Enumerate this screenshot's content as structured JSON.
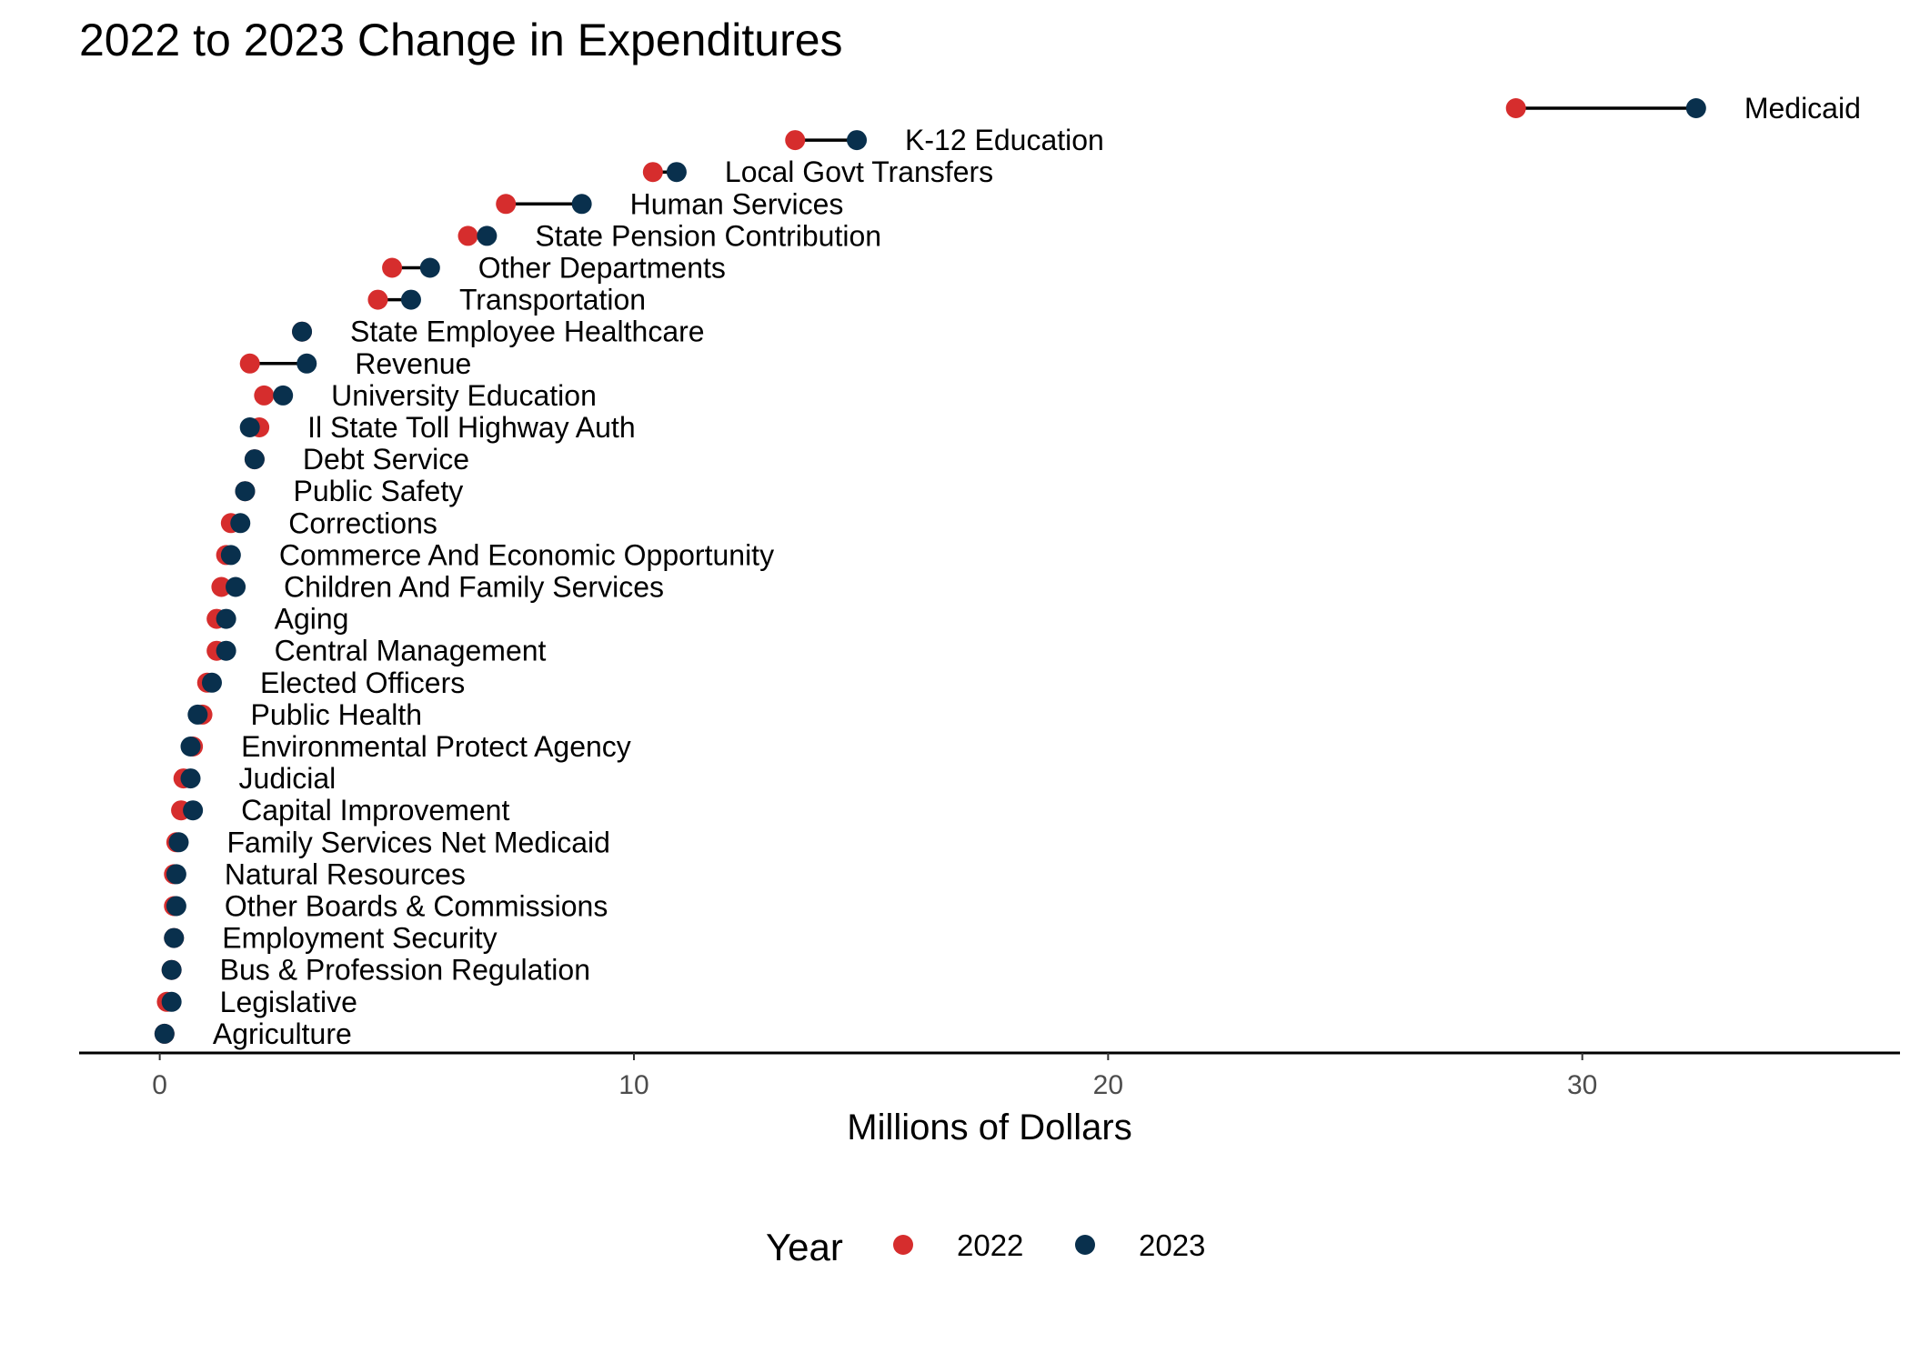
{
  "chart_data": {
    "type": "dumbbell",
    "title": "2022 to 2023 Change in Expenditures",
    "xlabel": "Millions of Dollars",
    "ylabel": "",
    "xlim": [
      -1.7,
      36.7
    ],
    "xticks": [
      0,
      10,
      20,
      30
    ],
    "grid": false,
    "legend": {
      "title": "Year",
      "position": "bottom"
    },
    "series": [
      {
        "name": "2022",
        "color": "#d62d2d"
      },
      {
        "name": "2023",
        "color": "#09304d"
      }
    ],
    "categories": [
      "Medicaid",
      "K-12 Education",
      "Local Govt Transfers",
      "Human Services",
      "State Pension Contribution",
      "Other Departments",
      "Transportation",
      "State Employee Healthcare",
      "Revenue",
      "University Education",
      "Il State Toll Highway Auth",
      "Debt Service",
      "Public Safety",
      "Corrections",
      "Commerce And Economic Opportunity",
      "Children And Family Services",
      "Aging",
      "Central Management",
      "Elected Officers",
      "Public Health",
      "Environmental Protect Agency",
      "Judicial",
      "Capital Improvement",
      "Family Services Net Medicaid",
      "Natural Resources",
      "Other Boards & Commissions",
      "Employment Security",
      "Bus & Profession Regulation",
      "Legislative",
      "Agriculture"
    ],
    "values_2022": [
      28.6,
      13.4,
      10.4,
      7.3,
      6.5,
      4.9,
      4.6,
      3.0,
      1.9,
      2.2,
      2.1,
      2.0,
      1.8,
      1.5,
      1.4,
      1.3,
      1.2,
      1.2,
      1.0,
      0.9,
      0.7,
      0.5,
      0.45,
      0.35,
      0.3,
      0.3,
      0.3,
      0.25,
      0.15,
      0.1
    ],
    "values_2023": [
      32.4,
      14.7,
      10.9,
      8.9,
      6.9,
      5.7,
      5.3,
      3.0,
      3.1,
      2.6,
      1.9,
      2.0,
      1.8,
      1.7,
      1.5,
      1.6,
      1.4,
      1.4,
      1.1,
      0.8,
      0.65,
      0.65,
      0.7,
      0.4,
      0.35,
      0.35,
      0.3,
      0.25,
      0.25,
      0.1
    ]
  }
}
